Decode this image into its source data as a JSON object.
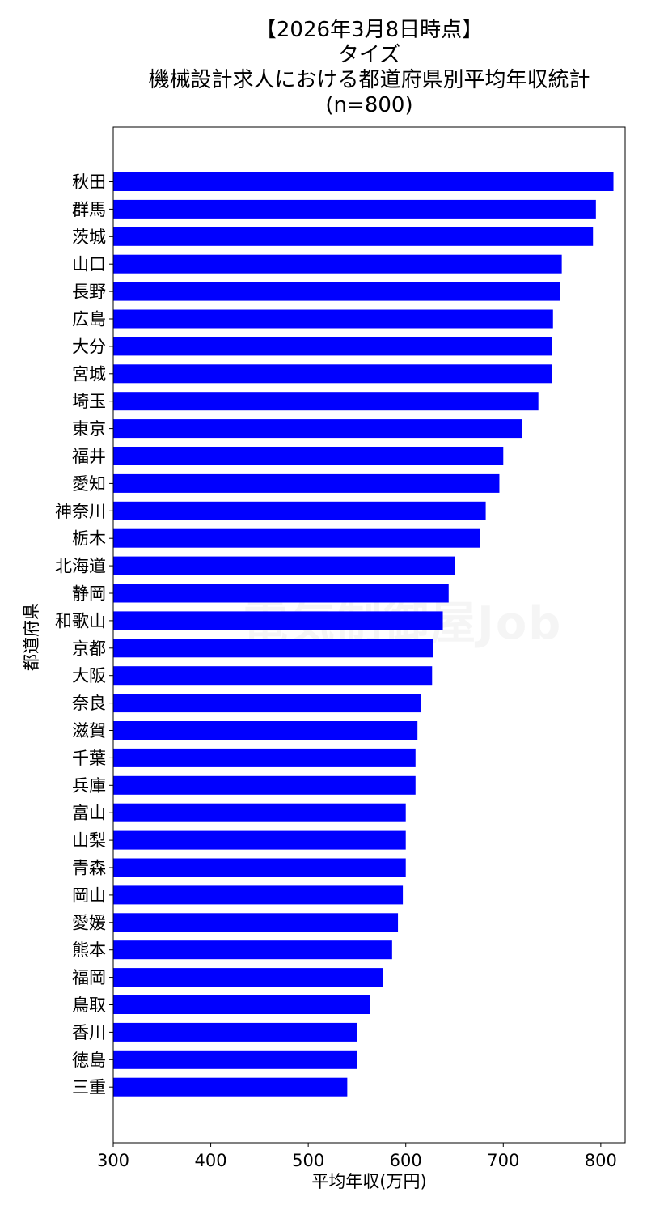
{
  "title": {
    "line1": "【2026年3月8日時点】",
    "line2": "タイズ",
    "line3": "機械設計求人における都道府県別平均年収統計",
    "line4": "(n=800)"
  },
  "watermark": "電気制御屋Job",
  "chart_data": {
    "type": "bar",
    "orientation": "horizontal",
    "xlabel": "平均年収(万円)",
    "ylabel": "都道府県",
    "xlim": [
      300,
      825
    ],
    "xticks": [
      300,
      400,
      500,
      600,
      700,
      800
    ],
    "bar_color": "#0000ff",
    "grid": false,
    "categories": [
      "秋田",
      "群馬",
      "茨城",
      "山口",
      "長野",
      "広島",
      "大分",
      "宮城",
      "埼玉",
      "東京",
      "福井",
      "愛知",
      "神奈川",
      "栃木",
      "北海道",
      "静岡",
      "和歌山",
      "京都",
      "大阪",
      "奈良",
      "滋賀",
      "千葉",
      "兵庫",
      "富山",
      "山梨",
      "青森",
      "岡山",
      "愛媛",
      "熊本",
      "福岡",
      "鳥取",
      "香川",
      "徳島",
      "三重"
    ],
    "values": [
      813,
      795,
      792,
      760,
      758,
      751,
      750,
      750,
      736,
      719,
      700,
      696,
      682,
      676,
      650,
      644,
      638,
      628,
      627,
      616,
      612,
      610,
      610,
      600,
      600,
      600,
      597,
      592,
      586,
      577,
      563,
      550,
      550,
      540
    ]
  }
}
